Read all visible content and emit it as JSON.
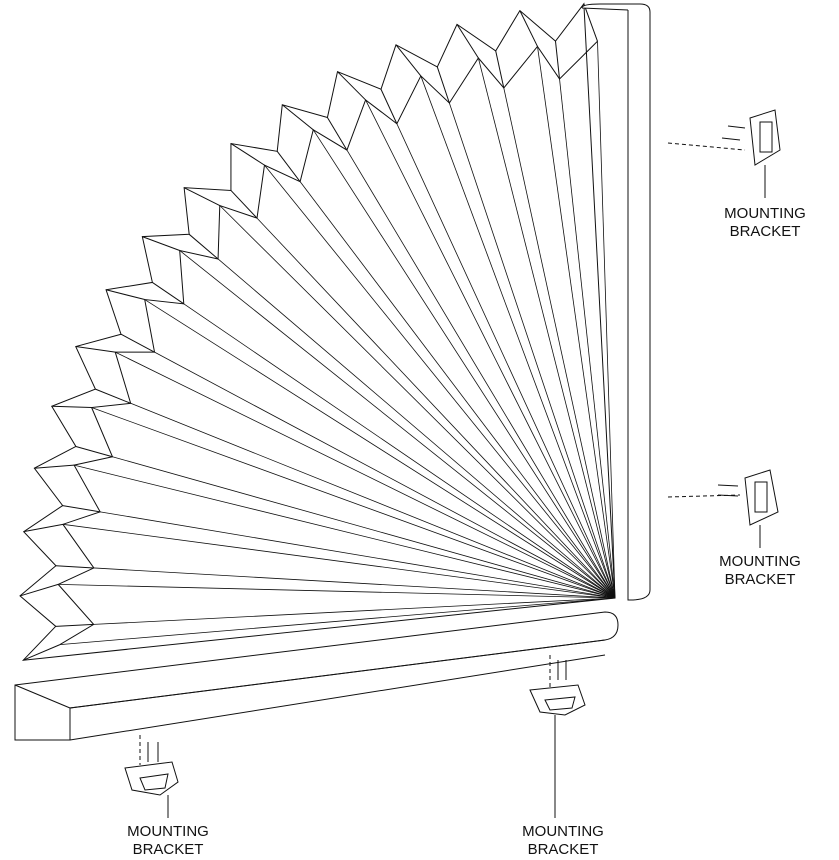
{
  "labels": [
    {
      "line1": "MOUNTING",
      "line2": "BRACKET"
    },
    {
      "line1": "MOUNTING",
      "line2": "BRACKET"
    },
    {
      "line1": "MOUNTING",
      "line2": "BRACKET"
    },
    {
      "line1": "MOUNTING",
      "line2": "BRACKET"
    }
  ]
}
